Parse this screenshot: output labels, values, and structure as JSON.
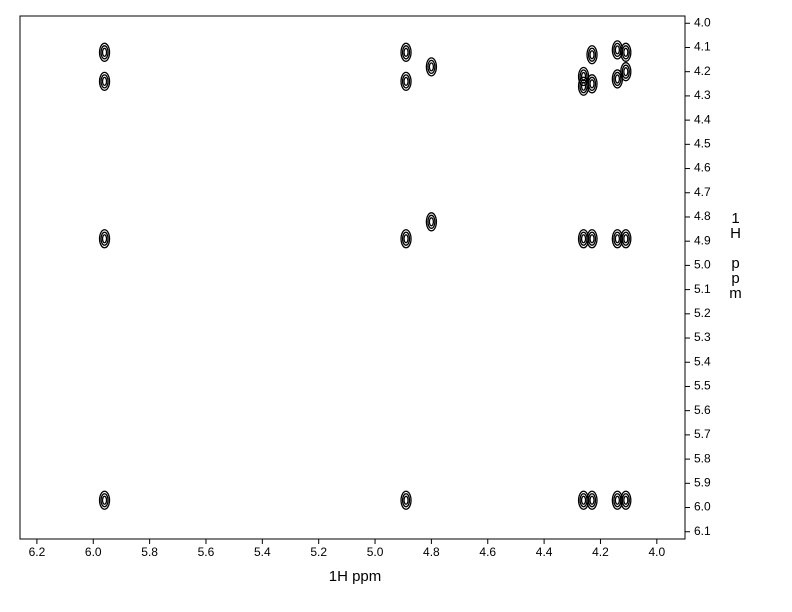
{
  "chart_data": {
    "type": "contour",
    "x_label": "1H ppm",
    "y_label": "1H ppm",
    "xlim": [
      6.26,
      3.9
    ],
    "ylim": [
      3.97,
      6.13
    ],
    "xticks": [
      6.2,
      {
        "value": 6,
        "label": "6.0"
      },
      5.8,
      5.6,
      5.4,
      5.2,
      {
        "value": 5,
        "label": "5.0"
      },
      4.8,
      4.6,
      4.4,
      4.2,
      {
        "value": 4,
        "label": "4.0"
      }
    ],
    "yticks": [
      {
        "value": 4,
        "label": "4.0"
      },
      4.1,
      4.2,
      4.3,
      4.4,
      4.5,
      4.6,
      4.7,
      4.8,
      4.9,
      {
        "value": 5,
        "label": "5.0"
      },
      5.1,
      5.2,
      5.3,
      5.4,
      5.5,
      5.6,
      5.7,
      5.8,
      5.9,
      {
        "value": 6,
        "label": "6.0"
      },
      6.1
    ],
    "color": "#000000",
    "peaks": {
      "x": [
        5.96,
        5.96,
        4.89,
        4.89,
        4.8,
        4.26,
        4.26,
        4.23,
        4.23,
        4.14,
        4.14,
        4.11,
        4.11,
        5.96,
        4.89,
        4.8,
        4.26,
        4.23,
        4.14,
        4.11,
        5.96,
        4.89,
        4.26,
        4.23,
        4.14,
        4.11
      ],
      "y": [
        4.12,
        4.24,
        4.12,
        4.24,
        4.18,
        4.22,
        4.26,
        4.13,
        4.25,
        4.11,
        4.23,
        4.12,
        4.2,
        4.89,
        4.89,
        4.82,
        4.89,
        4.89,
        4.89,
        4.89,
        5.97,
        5.97,
        5.97,
        5.97,
        5.97,
        5.97
      ]
    }
  }
}
